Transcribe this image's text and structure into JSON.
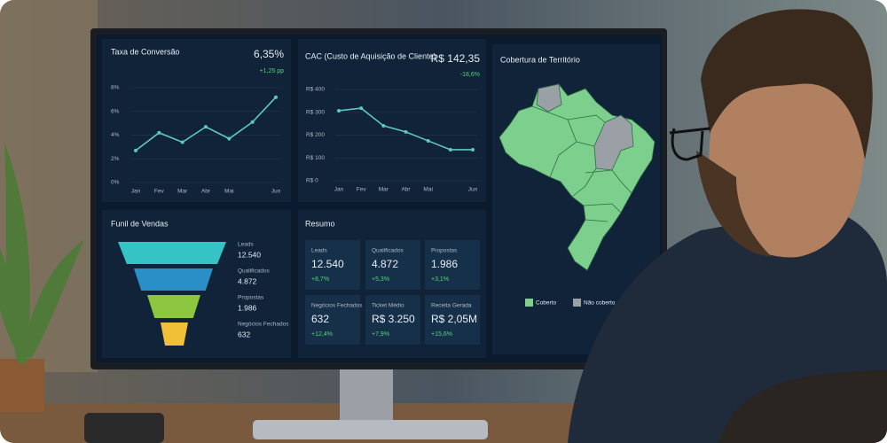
{
  "chart_data": [
    {
      "type": "line",
      "title": "Taxa de Conversão",
      "kpi": "6,35%",
      "kpi_change": "+1,25 pp",
      "categories": [
        "Jan",
        "Fev",
        "Mar",
        "Abr",
        "Mai",
        null,
        "Jun"
      ],
      "values": [
        2.7,
        4.2,
        3.4,
        4.7,
        3.7,
        5.1,
        7.2
      ],
      "color": "#5ec8c4",
      "ylim": [
        0,
        8
      ],
      "yticks": [
        {
          "value": 0,
          "label": "0%"
        },
        {
          "value": 2,
          "label": "2%"
        },
        {
          "value": 4,
          "label": "4%"
        },
        {
          "value": 6,
          "label": "6%"
        },
        {
          "value": 8,
          "label": "8%"
        }
      ],
      "grid": true
    },
    {
      "type": "line",
      "title": "CAC (Custo de Aquisição de Cliente)",
      "kpi": "R$ 142,35",
      "kpi_change": "-18,6%",
      "categories": [
        "Jan",
        "Fev",
        "Mar",
        "Abr",
        "Mai",
        null,
        "Jun"
      ],
      "values": [
        307,
        318,
        241,
        214,
        175,
        136,
        136
      ],
      "color": "#5ec8c4",
      "ylim": [
        0,
        400
      ],
      "yticks": [
        {
          "value": 0,
          "label": "R$ 0"
        },
        {
          "value": 100,
          "label": "R$ 100"
        },
        {
          "value": 200,
          "label": "R$ 200"
        },
        {
          "value": 300,
          "label": "R$ 300"
        },
        {
          "value": 400,
          "label": "R$ 400"
        }
      ],
      "grid": true
    }
  ],
  "funnel": {
    "title": "Funil de Vendas",
    "stages": [
      {
        "label": "Leads",
        "value": "12.540",
        "color": "#35c3c6"
      },
      {
        "label": "Qualificados",
        "value": "4.872",
        "color": "#2b8fc7"
      },
      {
        "label": "Propostas",
        "value": "1.986",
        "color": "#8cc63e"
      },
      {
        "label": "Negócios Fechados",
        "value": "632",
        "color": "#f2c037"
      }
    ]
  },
  "summary": {
    "title": "Resumo",
    "cards": [
      {
        "label": "Leads",
        "value": "12.540",
        "change": "+8,7%"
      },
      {
        "label": "Qualificados",
        "value": "4.872",
        "change": "+5,3%"
      },
      {
        "label": "Propostas",
        "value": "1.986",
        "change": "+3,1%"
      },
      {
        "label": "Negócios Fechados",
        "value": "632",
        "change": "+12,4%"
      },
      {
        "label": "Ticket Médio",
        "value": "R$ 3.250",
        "change": "+7,9%"
      },
      {
        "label": "Receita Gerada",
        "value": "R$ 2,05M",
        "change": "+15,6%"
      }
    ]
  },
  "map": {
    "title": "Cobertura de Território",
    "legend": [
      {
        "label": "Coberto",
        "color": "#7ccf8c"
      },
      {
        "label": "Não coberto",
        "color": "#9aa0a6"
      }
    ]
  }
}
